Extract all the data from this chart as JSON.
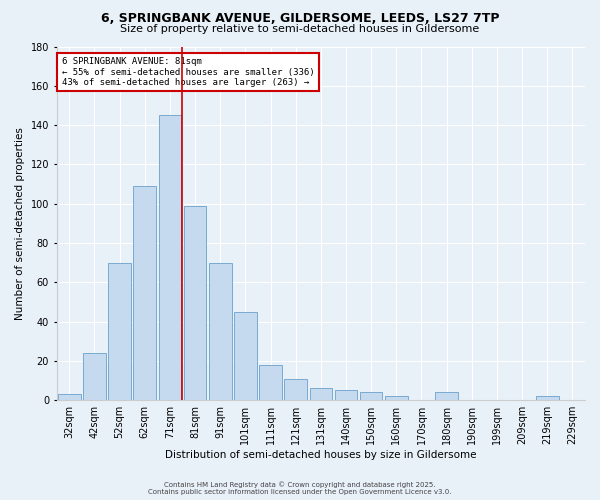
{
  "title1": "6, SPRINGBANK AVENUE, GILDERSOME, LEEDS, LS27 7TP",
  "title2": "Size of property relative to semi-detached houses in Gildersome",
  "xlabel": "Distribution of semi-detached houses by size in Gildersome",
  "ylabel": "Number of semi-detached properties",
  "categories": [
    "32sqm",
    "42sqm",
    "52sqm",
    "62sqm",
    "71sqm",
    "81sqm",
    "91sqm",
    "101sqm",
    "111sqm",
    "121sqm",
    "131sqm",
    "140sqm",
    "150sqm",
    "160sqm",
    "170sqm",
    "180sqm",
    "190sqm",
    "199sqm",
    "209sqm",
    "219sqm",
    "229sqm"
  ],
  "values": [
    3,
    24,
    70,
    109,
    145,
    99,
    70,
    45,
    18,
    11,
    6,
    5,
    4,
    2,
    0,
    4,
    0,
    0,
    0,
    2,
    0
  ],
  "bar_color": "#c5d9ef",
  "bar_edge_color": "#7aaad0",
  "highlight_line_color": "#cc0000",
  "annotation_title": "6 SPRINGBANK AVENUE: 81sqm",
  "annotation_line1": "← 55% of semi-detached houses are smaller (336)",
  "annotation_line2": "43% of semi-detached houses are larger (263) →",
  "annotation_box_color": "#ffffff",
  "annotation_box_edge": "#cc0000",
  "footer1": "Contains HM Land Registry data © Crown copyright and database right 2025.",
  "footer2": "Contains public sector information licensed under the Open Government Licence v3.0.",
  "bg_color": "#e8f0f8",
  "plot_bg_color": "#e8f0f8",
  "ylim": [
    0,
    180
  ],
  "yticks": [
    0,
    20,
    40,
    60,
    80,
    100,
    120,
    140,
    160,
    180
  ],
  "title1_fontsize": 9,
  "title2_fontsize": 8,
  "axis_fontsize": 7.5,
  "tick_fontsize": 7,
  "annotation_fontsize": 6.5,
  "footer_fontsize": 5
}
